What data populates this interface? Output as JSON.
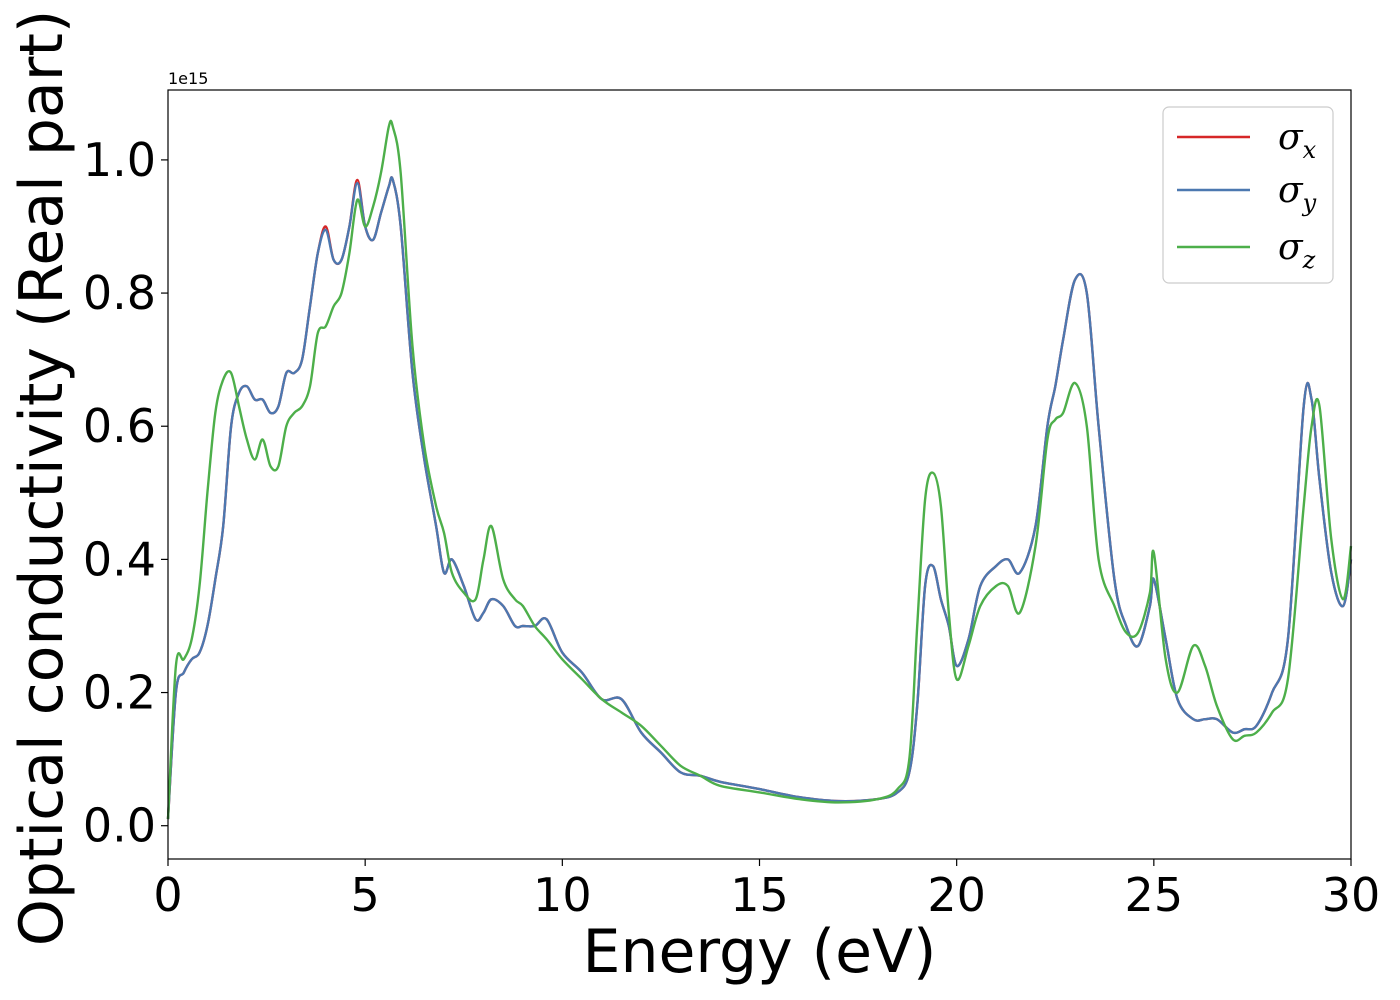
{
  "chart_data": {
    "type": "line",
    "title": "",
    "xlabel": "Energy (eV)",
    "ylabel": "Optical conductivity (Real part)",
    "y_offset_label": "1e15",
    "xlim": [
      0,
      30
    ],
    "ylim": [
      -0.05,
      1.105
    ],
    "xticks": [
      0,
      5,
      10,
      15,
      20,
      25,
      30
    ],
    "xtick_labels": [
      "0",
      "5",
      "10",
      "15",
      "20",
      "25",
      "30"
    ],
    "yticks": [
      0.0,
      0.2,
      0.4,
      0.6,
      0.8,
      1.0
    ],
    "ytick_labels": [
      "0.0",
      "0.2",
      "0.4",
      "0.6",
      "0.8",
      "1.0"
    ],
    "grid": false,
    "legend_position": "top-right",
    "x": [
      0,
      0.2,
      0.4,
      0.6,
      0.8,
      1.0,
      1.2,
      1.4,
      1.6,
      1.8,
      2.0,
      2.2,
      2.4,
      2.6,
      2.8,
      3.0,
      3.2,
      3.4,
      3.6,
      3.8,
      4.0,
      4.2,
      4.4,
      4.6,
      4.8,
      5.0,
      5.2,
      5.4,
      5.6,
      5.7,
      5.9,
      6.2,
      6.5,
      6.8,
      7.0,
      7.2,
      7.5,
      7.8,
      8.0,
      8.2,
      8.5,
      8.8,
      9.0,
      9.3,
      9.6,
      10.0,
      10.5,
      11.0,
      11.5,
      12.0,
      12.5,
      13.0,
      13.5,
      14.0,
      15.0,
      16.0,
      17.0,
      18.0,
      18.5,
      18.8,
      19.0,
      19.2,
      19.4,
      19.6,
      19.8,
      20.0,
      20.3,
      20.6,
      21.0,
      21.3,
      21.6,
      22.0,
      22.3,
      22.5,
      22.7,
      23.0,
      23.3,
      23.6,
      24.0,
      24.3,
      24.6,
      24.9,
      25.0,
      25.3,
      25.6,
      26.0,
      26.3,
      26.6,
      27.0,
      27.3,
      27.6,
      28.0,
      28.4,
      28.8,
      29.0,
      29.2,
      29.5,
      29.8,
      30.0
    ],
    "series": [
      {
        "name": "σx",
        "label_base": "σ",
        "label_sub": "x",
        "color": "#d62728",
        "values": [
          0.01,
          0.2,
          0.23,
          0.25,
          0.26,
          0.3,
          0.37,
          0.45,
          0.6,
          0.65,
          0.66,
          0.64,
          0.64,
          0.62,
          0.63,
          0.68,
          0.68,
          0.7,
          0.78,
          0.86,
          0.9,
          0.85,
          0.85,
          0.9,
          0.97,
          0.9,
          0.88,
          0.92,
          0.96,
          0.97,
          0.9,
          0.68,
          0.55,
          0.45,
          0.38,
          0.4,
          0.36,
          0.31,
          0.32,
          0.34,
          0.33,
          0.3,
          0.3,
          0.3,
          0.31,
          0.26,
          0.23,
          0.19,
          0.19,
          0.14,
          0.11,
          0.08,
          0.075,
          0.066,
          0.055,
          0.043,
          0.037,
          0.04,
          0.05,
          0.08,
          0.18,
          0.36,
          0.39,
          0.34,
          0.3,
          0.24,
          0.28,
          0.36,
          0.39,
          0.4,
          0.38,
          0.45,
          0.6,
          0.66,
          0.73,
          0.82,
          0.8,
          0.6,
          0.37,
          0.3,
          0.27,
          0.33,
          0.37,
          0.28,
          0.19,
          0.16,
          0.16,
          0.16,
          0.14,
          0.145,
          0.15,
          0.2,
          0.28,
          0.63,
          0.64,
          0.52,
          0.38,
          0.33,
          0.4
        ]
      },
      {
        "name": "σy",
        "label_base": "σ",
        "label_sub": "y",
        "color": "#4c78b0",
        "values": [
          0.01,
          0.2,
          0.23,
          0.25,
          0.26,
          0.3,
          0.37,
          0.45,
          0.6,
          0.65,
          0.66,
          0.64,
          0.64,
          0.62,
          0.63,
          0.68,
          0.68,
          0.7,
          0.78,
          0.86,
          0.895,
          0.85,
          0.85,
          0.9,
          0.965,
          0.9,
          0.88,
          0.92,
          0.96,
          0.97,
          0.9,
          0.68,
          0.55,
          0.45,
          0.38,
          0.4,
          0.36,
          0.31,
          0.32,
          0.34,
          0.33,
          0.3,
          0.3,
          0.3,
          0.31,
          0.26,
          0.23,
          0.19,
          0.19,
          0.14,
          0.11,
          0.08,
          0.075,
          0.066,
          0.055,
          0.043,
          0.037,
          0.04,
          0.05,
          0.08,
          0.18,
          0.36,
          0.39,
          0.34,
          0.3,
          0.24,
          0.28,
          0.36,
          0.39,
          0.4,
          0.38,
          0.45,
          0.6,
          0.66,
          0.73,
          0.82,
          0.8,
          0.6,
          0.37,
          0.3,
          0.27,
          0.33,
          0.37,
          0.28,
          0.19,
          0.16,
          0.16,
          0.16,
          0.14,
          0.145,
          0.15,
          0.2,
          0.28,
          0.63,
          0.64,
          0.52,
          0.38,
          0.33,
          0.4
        ]
      },
      {
        "name": "σz",
        "label_base": "σ",
        "label_sub": "z",
        "color": "#4daf4a",
        "values": [
          0.01,
          0.24,
          0.25,
          0.28,
          0.36,
          0.5,
          0.62,
          0.67,
          0.68,
          0.63,
          0.58,
          0.55,
          0.58,
          0.54,
          0.54,
          0.6,
          0.62,
          0.63,
          0.66,
          0.74,
          0.75,
          0.78,
          0.8,
          0.86,
          0.94,
          0.9,
          0.93,
          0.98,
          1.05,
          1.05,
          0.98,
          0.72,
          0.57,
          0.48,
          0.44,
          0.38,
          0.35,
          0.34,
          0.4,
          0.45,
          0.37,
          0.34,
          0.33,
          0.3,
          0.28,
          0.25,
          0.22,
          0.19,
          0.17,
          0.15,
          0.12,
          0.09,
          0.075,
          0.06,
          0.05,
          0.04,
          0.035,
          0.04,
          0.055,
          0.1,
          0.3,
          0.49,
          0.53,
          0.48,
          0.32,
          0.22,
          0.27,
          0.33,
          0.36,
          0.36,
          0.32,
          0.42,
          0.58,
          0.61,
          0.62,
          0.665,
          0.6,
          0.4,
          0.33,
          0.29,
          0.29,
          0.35,
          0.41,
          0.25,
          0.2,
          0.27,
          0.24,
          0.18,
          0.13,
          0.135,
          0.14,
          0.17,
          0.22,
          0.48,
          0.6,
          0.63,
          0.43,
          0.34,
          0.42
        ]
      }
    ]
  }
}
